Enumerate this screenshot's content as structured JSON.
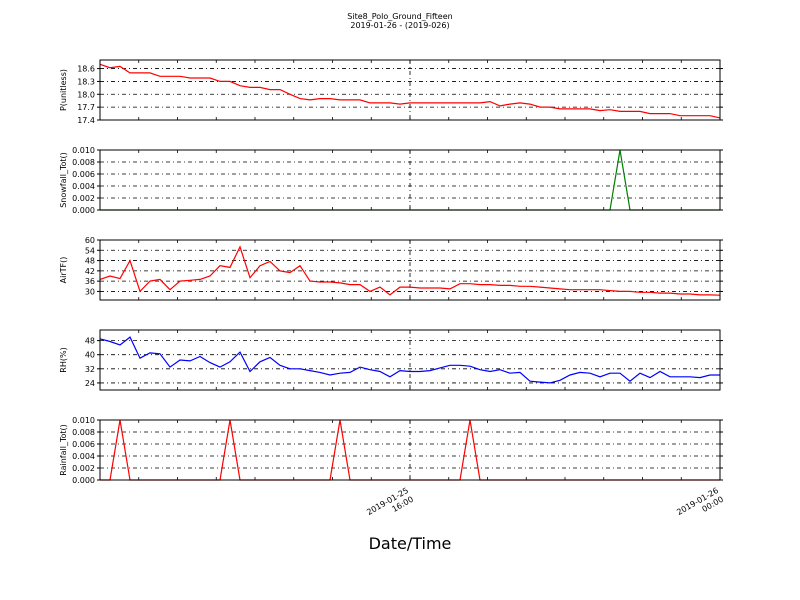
{
  "figure": {
    "title": "Site8_Polo_Ground_Fifteen",
    "subtitle": "2019-01-26 - (2019-026)",
    "xlabel": "Date/Time",
    "x_ticks": [
      {
        "value": 8,
        "line1": "2019-01-25",
        "line2": "16:00"
      },
      {
        "value": 16,
        "line1": "2019-01-26",
        "line2": "00:00"
      }
    ],
    "x_range": [
      0,
      16
    ]
  },
  "chart_data": [
    {
      "type": "line",
      "ylabel": "P(unitless)",
      "color": "#ff0000",
      "ylim": [
        17.4,
        18.8
      ],
      "yticks": [
        17.4,
        17.7,
        18.0,
        18.3,
        18.6
      ],
      "ytick_labels": [
        "17.4",
        "17.7",
        "18.0",
        "18.3",
        "18.6"
      ],
      "x": [
        0,
        0.258,
        0.516,
        0.774,
        1.032,
        1.29,
        1.548,
        1.806,
        2.065,
        2.323,
        2.581,
        2.839,
        3.097,
        3.355,
        3.613,
        3.871,
        4.129,
        4.387,
        4.645,
        4.903,
        5.161,
        5.419,
        5.677,
        5.935,
        6.194,
        6.452,
        6.71,
        6.968,
        7.226,
        7.484,
        7.742,
        8.0,
        8.258,
        8.516,
        8.774,
        9.032,
        9.29,
        9.548,
        9.806,
        10.065,
        10.323,
        10.581,
        10.839,
        11.097,
        11.355,
        11.613,
        11.871,
        12.129,
        12.387,
        12.645,
        12.903,
        13.161,
        13.419,
        13.677,
        13.935,
        14.194,
        14.452,
        14.71,
        14.968,
        15.226,
        15.484,
        15.742,
        16.0
      ],
      "y": [
        18.7,
        18.62,
        18.65,
        18.5,
        18.5,
        18.5,
        18.42,
        18.42,
        18.42,
        18.38,
        18.38,
        18.38,
        18.3,
        18.3,
        18.2,
        18.16,
        18.16,
        18.11,
        18.11,
        18.0,
        17.9,
        17.87,
        17.9,
        17.9,
        17.87,
        17.87,
        17.87,
        17.8,
        17.8,
        17.8,
        17.77,
        17.8,
        17.8,
        17.8,
        17.8,
        17.8,
        17.8,
        17.8,
        17.8,
        17.83,
        17.73,
        17.77,
        17.8,
        17.77,
        17.7,
        17.7,
        17.66,
        17.66,
        17.66,
        17.66,
        17.62,
        17.64,
        17.6,
        17.6,
        17.6,
        17.55,
        17.55,
        17.55,
        17.5,
        17.5,
        17.5,
        17.5,
        17.45
      ]
    },
    {
      "type": "line",
      "ylabel": "Snowfall_Tot()",
      "color": "#008000",
      "ylim": [
        0.0,
        0.01
      ],
      "yticks": [
        0.0,
        0.002,
        0.004,
        0.006,
        0.008,
        0.01
      ],
      "ytick_labels": [
        "0.000",
        "0.002",
        "0.004",
        "0.006",
        "0.008",
        "0.010"
      ],
      "x": [
        0,
        13.161,
        13.419,
        13.677,
        16.0
      ],
      "y": [
        0,
        0,
        0.01,
        0,
        0
      ]
    },
    {
      "type": "line",
      "ylabel": "AirTF()",
      "color": "#ff0000",
      "ylim": [
        25,
        60
      ],
      "yticks": [
        30,
        36,
        42,
        48,
        54,
        60
      ],
      "ytick_labels": [
        "30",
        "36",
        "42",
        "48",
        "54",
        "60"
      ],
      "x": [
        0,
        0.258,
        0.516,
        0.774,
        1.032,
        1.29,
        1.548,
        1.806,
        2.065,
        2.323,
        2.581,
        2.839,
        3.097,
        3.355,
        3.613,
        3.871,
        4.129,
        4.387,
        4.645,
        4.903,
        5.161,
        5.419,
        5.677,
        5.935,
        6.194,
        6.452,
        6.71,
        6.968,
        7.226,
        7.484,
        7.742,
        8.0,
        8.258,
        8.516,
        8.774,
        9.032,
        9.29,
        9.548,
        9.806,
        10.065,
        10.323,
        10.581,
        10.839,
        11.097,
        11.355,
        11.613,
        11.871,
        12.129,
        12.387,
        12.645,
        12.903,
        13.161,
        13.419,
        13.677,
        13.935,
        14.194,
        14.452,
        14.71,
        14.968,
        15.226,
        15.484,
        15.742,
        16.0
      ],
      "y": [
        37,
        39,
        37.5,
        48,
        30,
        36,
        37,
        31,
        36,
        36.5,
        37,
        39,
        45,
        44,
        56,
        38,
        45,
        47.5,
        42,
        41,
        45,
        36,
        35.5,
        35.5,
        35,
        34,
        34,
        30,
        32.5,
        28,
        32.5,
        32.5,
        32,
        32,
        32,
        31.5,
        34.5,
        34.5,
        34,
        34,
        33.5,
        33.5,
        33,
        33,
        32.5,
        32,
        31.5,
        31,
        31,
        31,
        31,
        30.5,
        30,
        30,
        29.5,
        29.5,
        29,
        29,
        28.5,
        28.5,
        28,
        28,
        27.8
      ]
    },
    {
      "type": "line",
      "ylabel": "RH(%)",
      "color": "#0000ff",
      "ylim": [
        20,
        54
      ],
      "yticks": [
        24,
        32,
        40,
        48
      ],
      "ytick_labels": [
        "24",
        "32",
        "40",
        "48"
      ],
      "x": [
        0,
        0.258,
        0.516,
        0.774,
        1.032,
        1.29,
        1.548,
        1.806,
        2.065,
        2.323,
        2.581,
        2.839,
        3.097,
        3.355,
        3.613,
        3.871,
        4.129,
        4.387,
        4.645,
        4.903,
        5.161,
        5.419,
        5.677,
        5.935,
        6.194,
        6.452,
        6.71,
        6.968,
        7.226,
        7.484,
        7.742,
        8.0,
        8.258,
        8.516,
        8.774,
        9.032,
        9.29,
        9.548,
        9.806,
        10.065,
        10.323,
        10.581,
        10.839,
        11.097,
        11.355,
        11.613,
        11.871,
        12.129,
        12.387,
        12.645,
        12.903,
        13.161,
        13.419,
        13.677,
        13.935,
        14.194,
        14.452,
        14.71,
        14.968,
        15.226,
        15.484,
        15.742,
        16.0
      ],
      "y": [
        49,
        47.5,
        45.5,
        50,
        38,
        41,
        40.5,
        33,
        37,
        36.5,
        39,
        35.5,
        33,
        36,
        41.5,
        30.5,
        36,
        38.5,
        34,
        32,
        32,
        31,
        30,
        28.5,
        29.5,
        30,
        33,
        31.5,
        30.5,
        27.5,
        31,
        30.5,
        30.5,
        31,
        32.5,
        34,
        34,
        33.5,
        31.5,
        30.5,
        31.5,
        29.5,
        30,
        25,
        24.5,
        24,
        25.5,
        28.5,
        30,
        29.5,
        27.5,
        29.5,
        29.5,
        25,
        29.5,
        27,
        30.5,
        27.5,
        27.5,
        27.5,
        27,
        28.5,
        28.5
      ]
    },
    {
      "type": "line",
      "ylabel": "Rainfall_Tot()",
      "color": "#ff0000",
      "ylim": [
        0.0,
        0.01
      ],
      "yticks": [
        0.0,
        0.002,
        0.004,
        0.006,
        0.008,
        0.01
      ],
      "ytick_labels": [
        "0.000",
        "0.002",
        "0.004",
        "0.006",
        "0.008",
        "0.010"
      ],
      "x": [
        0,
        0.258,
        0.516,
        0.774,
        3.097,
        3.355,
        3.613,
        5.935,
        6.194,
        6.452,
        9.29,
        9.548,
        9.806,
        16.0
      ],
      "y": [
        0,
        0,
        0.01,
        0,
        0,
        0.01,
        0,
        0,
        0.01,
        0,
        0,
        0.01,
        0,
        0
      ]
    }
  ]
}
